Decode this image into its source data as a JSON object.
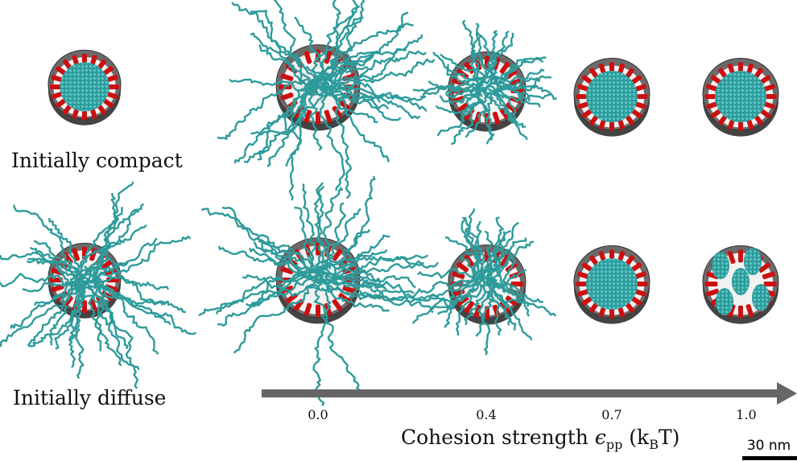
{
  "rows": [
    {
      "label": "Initially compact"
    },
    {
      "label": "Initially diffuse"
    }
  ],
  "axis": {
    "label_parts": [
      "Cohesion strength ",
      "ϵ",
      "pp",
      " (k",
      "B",
      "T)"
    ],
    "ticks": [
      "0.0",
      "0.4",
      "0.7",
      "1.0"
    ]
  },
  "scale_bar": "30 nm"
}
